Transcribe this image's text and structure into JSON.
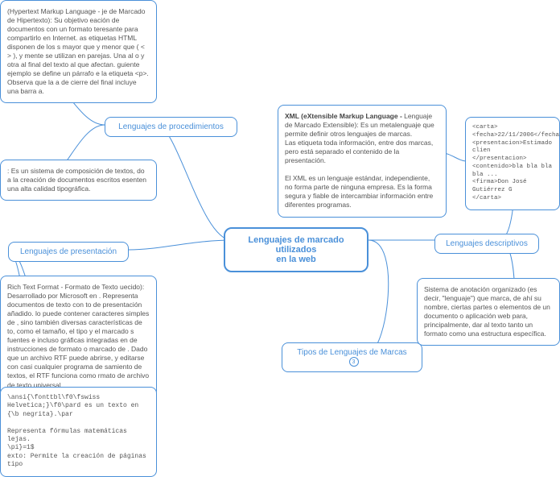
{
  "center": {
    "label": "Lenguajes de marcado utilizados\nen la web"
  },
  "nodes": {
    "procedimientos": {
      "label": "Lenguajes de procedimientos"
    },
    "presentacion": {
      "label": "Lenguajes de presentación"
    },
    "descriptivos": {
      "label": "Lenguajes descriptivos"
    },
    "tipos": {
      "label": "Tipos de Lenguajes de Marcas",
      "badge": "3"
    }
  },
  "boxes": {
    "html": {
      "text": "(Hypertext Markup Language - je de Marcado de Hipertexto): Su objetivo eación de documentos con un formato teresante para compartirlo en Internet. as etiquetas HTML disponen de los s mayor que y menor que ( < > ), y mente se utilizan en parejas. Una al o y otra al final del texto al que afectan. guiente ejemplo se define un párrafo e la etiqueta <p>. Observa que la a de cierre del final incluye una barra a."
    },
    "tex": {
      "text": ": Es un sistema de composición de textos, do a la creación de documentos escritos esenten una alta calidad tipográfica."
    },
    "rtf": {
      "text": "Rich Text Format - Formato de Texto uecido): Desarrollado por Microsoft en . Representa documentos de texto con to de presentación añadido. lo puede contener caracteres simples de , sino también diversas características de to, como el tamaño, el tipo y el marcado s fuentes e incluso gráficas integradas en de instrucciones de formato o marcado de . Dado que un archivo RTF puede abrirse, y editarse con casi cualquier programa de samiento de textos, el RTF funciona como rmato de archivo de texto universal"
    },
    "code": {
      "text": "\\ansi{\\fonttbl\\f0\\fswiss Helvetica;}\\f0\\pard es un texto en {\\b negrita}.\\par\n\nRepresenta fórmulas matemáticas lejas.\n\\pi}=1$\nexto: Permite la creación de páginas tipo"
    },
    "xml": {
      "title": "XML (eXtensible Markup Language - ",
      "text": "Lenguaje de Marcado Extensible): Es un metalenguaje que permite definir otros lenguajes de marcas.\nLas etiqueta toda información, entre dos marcas, pero está separado el contenido de la presentación.\n\nEl XML es un lenguaje estándar, independiente, no forma parte de ninguna empresa. Es la forma segura y fiable de intercambiar información entre diferentes programas."
    },
    "carta": {
      "text": "<carta>\n<fecha>22/11/2006</fecha>\n<presentacion>Estimado clien\n</presentacion>\n<contenido>bla bla bla bla ...\n<firma>Don José Gutiérrez G\n</carta>"
    },
    "sistema": {
      "text": "Sistema de anotación organizado (es decir, \"lenguaje\") que marca, de ahí su nombre, ciertas partes o elementos de un documento o aplicación web para, principalmente, dar al texto tanto un formato como una estructura específica."
    }
  },
  "colors": {
    "node_border": "#4a90d9",
    "node_text": "#4a90d9",
    "content_text": "#555555",
    "background": "#ffffff"
  }
}
